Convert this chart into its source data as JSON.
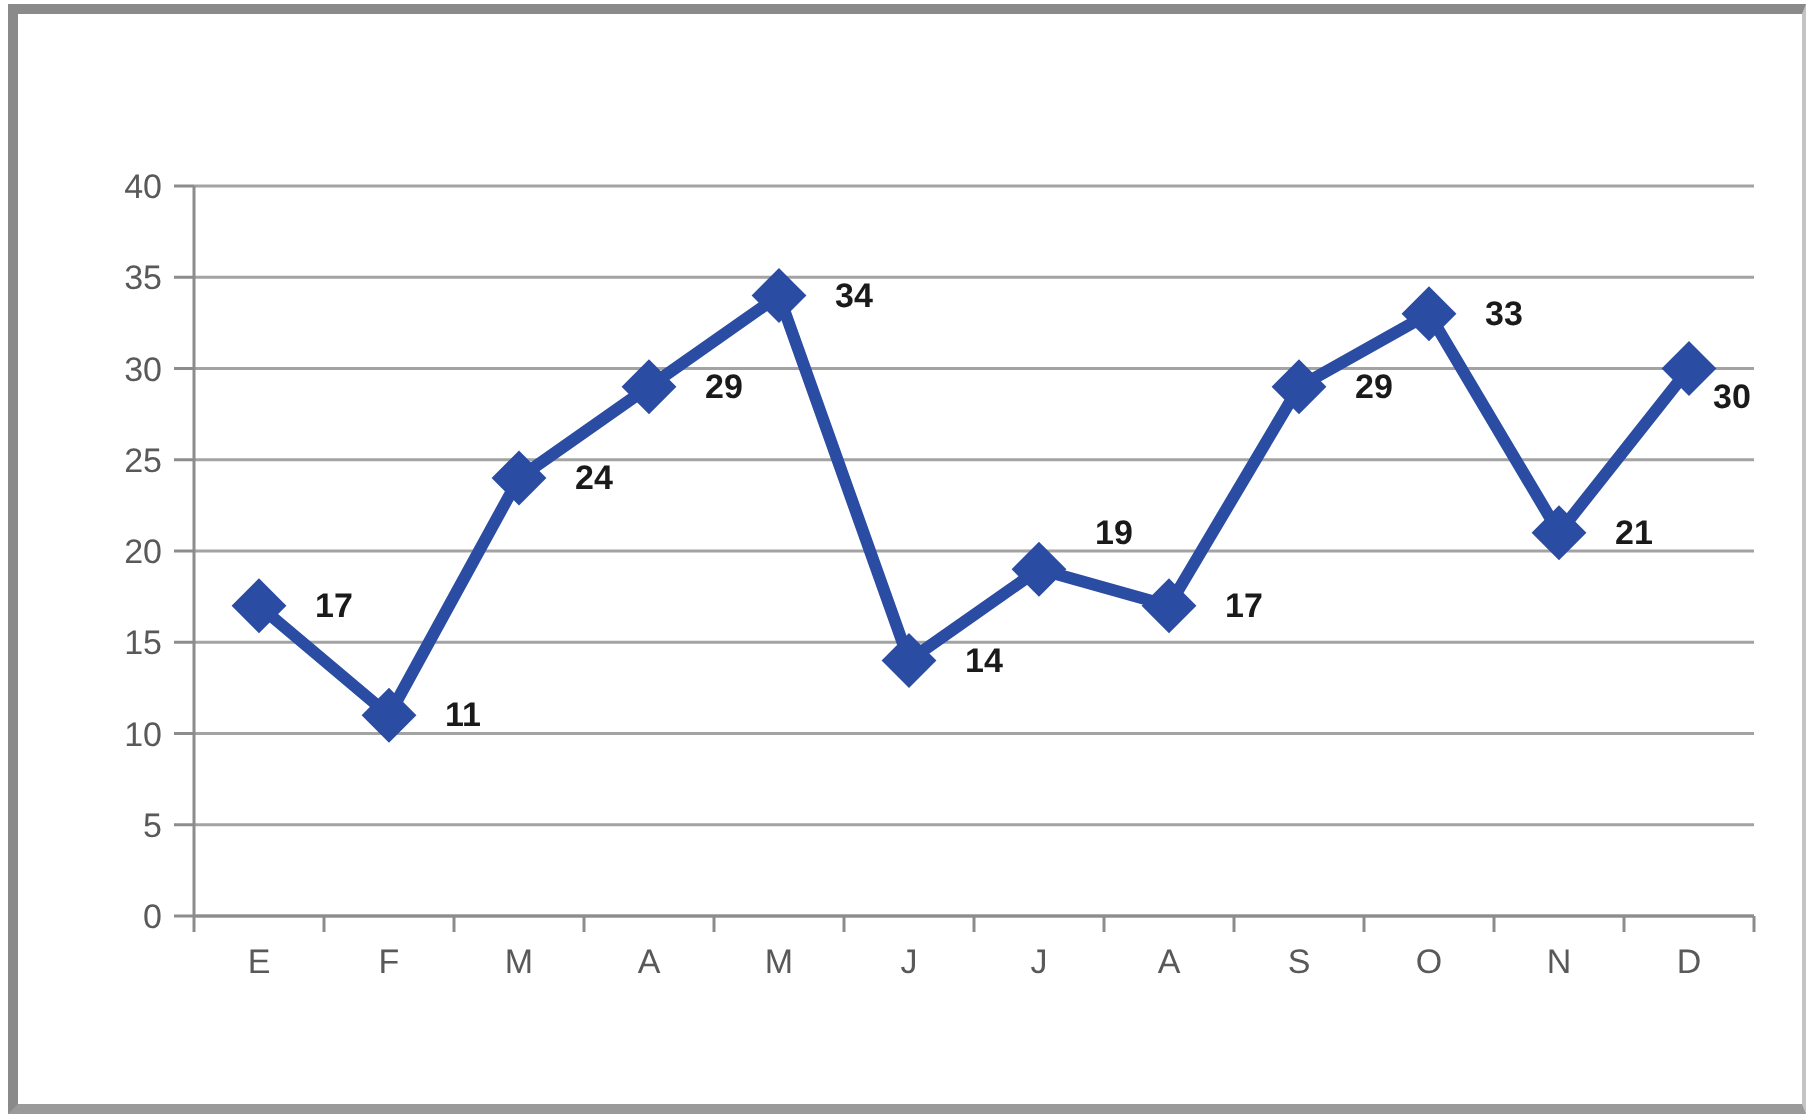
{
  "chart_data": {
    "type": "line",
    "categories": [
      "E",
      "F",
      "M",
      "A",
      "M",
      "J",
      "J",
      "A",
      "S",
      "O",
      "N",
      "D"
    ],
    "series": [
      {
        "color": "#2b4ca3",
        "values": [
          17,
          11,
          24,
          29,
          34,
          14,
          19,
          17,
          29,
          33,
          21,
          30
        ]
      }
    ],
    "ylim": [
      0,
      40
    ],
    "yticks": [
      0,
      5,
      10,
      15,
      20,
      25,
      30,
      35,
      40
    ],
    "grid": "y",
    "marker": "diamond",
    "line_style": "solid",
    "data_labels": true
  }
}
